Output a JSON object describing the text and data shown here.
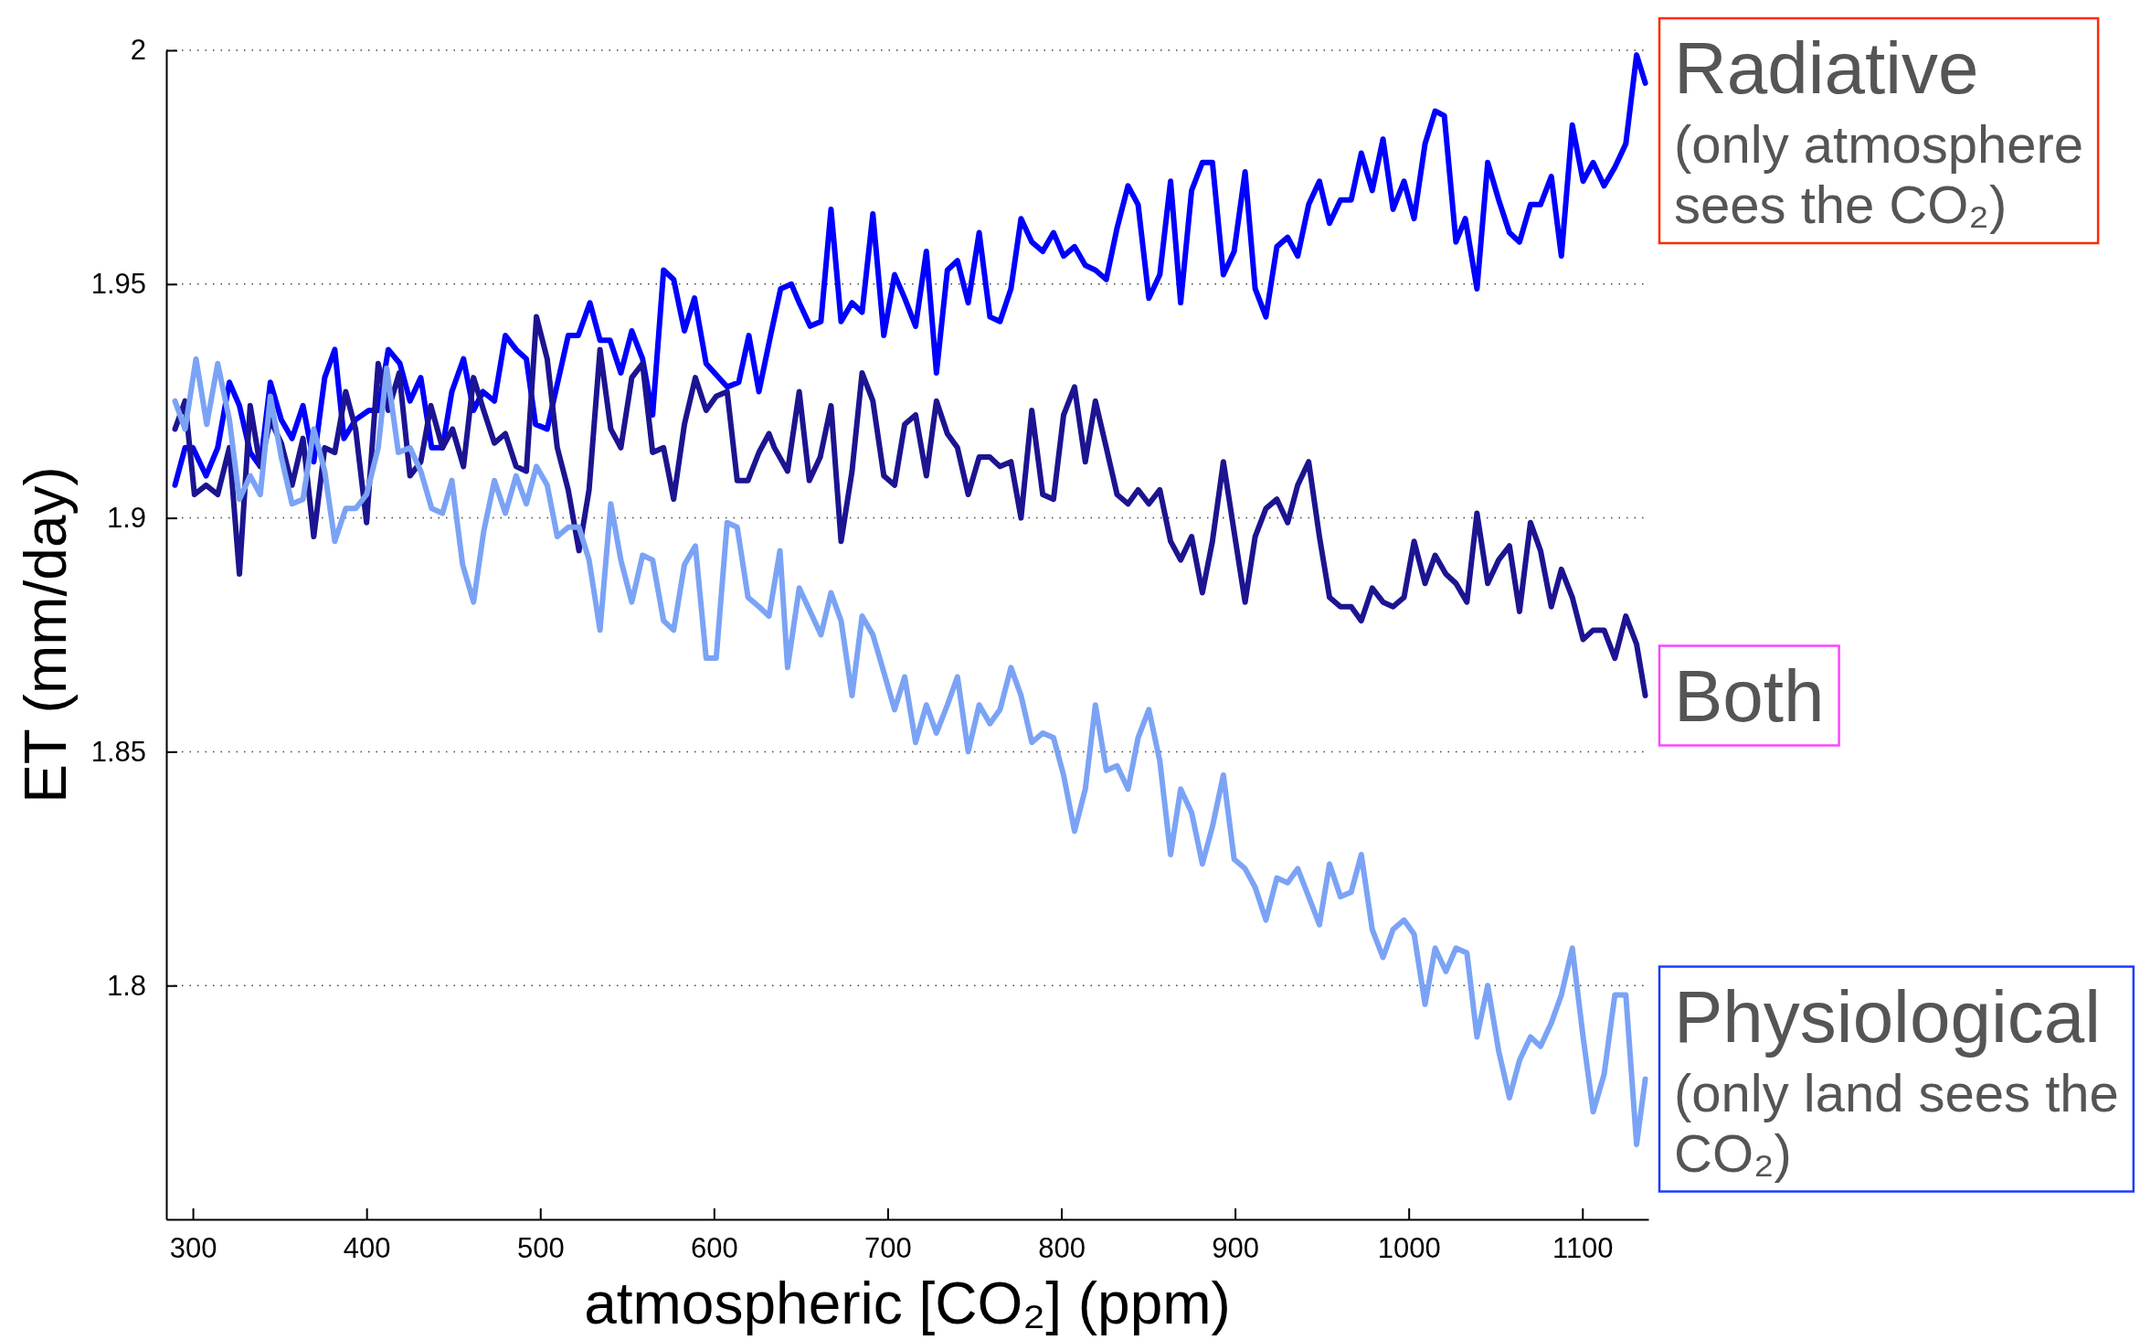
{
  "chart_data": {
    "type": "line",
    "xlabel": "atmospheric [CO₂] (ppm)",
    "ylabel": "ET (mm/day)",
    "xlim": [
      284.7,
      1138
    ],
    "xticks": [
      300,
      400,
      500,
      600,
      700,
      800,
      900,
      1000,
      1100
    ],
    "ylim": [
      1.75,
      2
    ],
    "yticks": [
      1.8,
      1.85,
      1.9,
      1.95,
      2
    ],
    "grid": "y",
    "series": [
      {
        "name": "Radiative (only atmosphere sees the CO₂)",
        "color": "#0000ff",
        "x": [
          289.7,
          295.5,
          300,
          307.6,
          314.3,
          321.0,
          326.8,
          333.0,
          338.8,
          344.6,
          350.9,
          357.1,
          363.4,
          369.6,
          375.9,
          381.7,
          387.0,
          393.7,
          401.3,
          406.7,
          412.5,
          419.2,
          425.0,
          431.2,
          437.5,
          443.7,
          449.1,
          455.8,
          461.6,
          467.0,
          473.6,
          479.9,
          486.1,
          492.0,
          497.3,
          504.0,
          516.1,
          521.9,
          528.6,
          534.4,
          540.2,
          546.4,
          552.7,
          558.9,
          564.7,
          571.0,
          576.8,
          583.0,
          588.8,
          595.5,
          607.6,
          614.3,
          620.1,
          625.9,
          632.6,
          638.4,
          644.6,
          649.1,
          655.4,
          661.6,
          667.4,
          673.2,
          679.5,
          685.3,
          691.5,
          697.8,
          704.0,
          709.8,
          716.1,
          722.3,
          728.1,
          734.4,
          740.2,
          746.4,
          752.7,
          758.9,
          764.7,
          771.0,
          776.8,
          783.0,
          789.3,
          795.5,
          801.3,
          807.6,
          813.8,
          819.6,
          825.9,
          832.1,
          838.4,
          844.2,
          850.4,
          856.7,
          862.9,
          868.7,
          875.0,
          881.2,
          887.0,
          893.3,
          899.5,
          905.8,
          911.6,
          917.8,
          924.1,
          930.3,
          936.1,
          942.4,
          948.6,
          954.4,
          960.7,
          966.9,
          972.7,
          979.0,
          985.2,
          991.0,
          997.3,
          1003.1,
          1009.4,
          1015.2,
          1020.5,
          1027.2,
          1032.6,
          1039.3,
          1045.5,
          1051.8,
          1058.0,
          1063.8,
          1070.1,
          1075.9,
          1082.1,
          1087.9,
          1094.2,
          1100.4,
          1106.2,
          1112.5,
          1118.7,
          1125.0,
          1131.2,
          1136.2
        ],
        "values": [
          1.907,
          1.915,
          1.915,
          1.909,
          1.915,
          1.929,
          1.924,
          1.914,
          1.911,
          1.929,
          1.921,
          1.917,
          1.924,
          1.912,
          1.93,
          1.936,
          1.917,
          1.921,
          1.923,
          1.923,
          1.936,
          1.933,
          1.925,
          1.93,
          1.915,
          1.915,
          1.927,
          1.934,
          1.923,
          1.927,
          1.925,
          1.939,
          1.936,
          1.934,
          1.92,
          1.919,
          1.939,
          1.939,
          1.946,
          1.938,
          1.938,
          1.931,
          1.94,
          1.934,
          1.922,
          1.953,
          1.951,
          1.94,
          1.947,
          1.933,
          1.928,
          1.929,
          1.939,
          1.927,
          1.939,
          1.949,
          1.95,
          1.946,
          1.941,
          1.942,
          1.966,
          1.942,
          1.946,
          1.944,
          1.965,
          1.939,
          1.952,
          1.947,
          1.941,
          1.957,
          1.931,
          1.953,
          1.955,
          1.946,
          1.961,
          1.943,
          1.942,
          1.949,
          1.964,
          1.959,
          1.957,
          1.961,
          1.956,
          1.958,
          1.954,
          1.953,
          1.951,
          1.962,
          1.971,
          1.967,
          1.947,
          1.952,
          1.972,
          1.946,
          1.97,
          1.976,
          1.976,
          1.952,
          1.957,
          1.974,
          1.949,
          1.943,
          1.958,
          1.96,
          1.956,
          1.967,
          1.972,
          1.963,
          1.968,
          1.968,
          1.978,
          1.97,
          1.981,
          1.966,
          1.972,
          1.964,
          1.98,
          1.987,
          1.986,
          1.959,
          1.964,
          1.949,
          1.976,
          1.968,
          1.961,
          1.959,
          1.967,
          1.967,
          1.973,
          1.956,
          1.984,
          1.972,
          1.976,
          1.971,
          1.975,
          1.98,
          1.999,
          1.993
        ]
      },
      {
        "name": "Both",
        "color": "#1c1490",
        "x": [
          289.7,
          295.5,
          300.9,
          307.6,
          314.3,
          321.0,
          326.8,
          333.0,
          338.8,
          344.6,
          350.9,
          357.1,
          363.4,
          369.6,
          375.9,
          381.7,
          388.0,
          393.7,
          400.0,
          406.7,
          412.5,
          418.8,
          425.0,
          431.2,
          437.0,
          443.7,
          449.5,
          455.8,
          461.6,
          467.4,
          473.6,
          479.9,
          486.1,
          492.0,
          497.8,
          504.0,
          509.8,
          516.1,
          522.3,
          528.1,
          534.4,
          540.6,
          546.4,
          552.7,
          558.9,
          564.7,
          571.0,
          576.8,
          583.0,
          589.3,
          595.5,
          601.3,
          607.6,
          613.4,
          619.6,
          625.9,
          631.7,
          634.8,
          642.4,
          649.1,
          654.9,
          661.2,
          667.4,
          673.2,
          679.5,
          685.3,
          691.5,
          697.8,
          704.0,
          709.8,
          716.1,
          722.3,
          728.1,
          734.4,
          740.2,
          746.4,
          752.7,
          758.9,
          764.7,
          771.0,
          776.8,
          783.0,
          789.3,
          795.5,
          801.3,
          807.6,
          813.8,
          819.6,
          825.9,
          832.1,
          838.4,
          844.2,
          850.4,
          856.7,
          862.9,
          868.7,
          875.0,
          881.2,
          887.0,
          893.3,
          899.5,
          905.8,
          911.6,
          917.8,
          924.1,
          930.3,
          936.1,
          942.4,
          948.6,
          954.4,
          960.7,
          966.9,
          972.7,
          979.0,
          985.2,
          991.0,
          997.3,
          1003.1,
          1009.4,
          1015.2,
          1021.4,
          1027.2,
          1033.5,
          1039.3,
          1045.5,
          1051.8,
          1058.0,
          1063.8,
          1070.1,
          1075.9,
          1082.1,
          1087.9,
          1094.2,
          1100.4,
          1106.2,
          1112.5,
          1118.7,
          1125.0,
          1131.2,
          1136.2
        ],
        "values": [
          1.919,
          1.925,
          1.905,
          1.907,
          1.905,
          1.915,
          1.888,
          1.924,
          1.911,
          1.921,
          1.916,
          1.907,
          1.917,
          1.896,
          1.915,
          1.914,
          1.927,
          1.919,
          1.899,
          1.933,
          1.923,
          1.931,
          1.909,
          1.912,
          1.924,
          1.915,
          1.919,
          1.911,
          1.93,
          1.923,
          1.916,
          1.918,
          1.911,
          1.91,
          1.943,
          1.934,
          1.915,
          1.906,
          1.893,
          1.906,
          1.936,
          1.919,
          1.915,
          1.93,
          1.933,
          1.914,
          1.915,
          1.904,
          1.92,
          1.93,
          1.923,
          1.926,
          1.927,
          1.908,
          1.908,
          1.914,
          1.918,
          1.915,
          1.91,
          1.927,
          1.908,
          1.913,
          1.924,
          1.895,
          1.91,
          1.931,
          1.925,
          1.909,
          1.907,
          1.92,
          1.922,
          1.909,
          1.925,
          1.918,
          1.915,
          1.905,
          1.913,
          1.913,
          1.911,
          1.912,
          1.9,
          1.923,
          1.905,
          1.904,
          1.922,
          1.928,
          1.912,
          1.925,
          1.915,
          1.905,
          1.903,
          1.906,
          1.903,
          1.906,
          1.895,
          1.891,
          1.896,
          1.884,
          1.895,
          1.912,
          1.897,
          1.882,
          1.896,
          1.902,
          1.904,
          1.899,
          1.907,
          1.912,
          1.896,
          1.883,
          1.881,
          1.881,
          1.878,
          1.885,
          1.882,
          1.881,
          1.883,
          1.895,
          1.886,
          1.892,
          1.888,
          1.886,
          1.882,
          1.901,
          1.886,
          1.891,
          1.894,
          1.88,
          1.899,
          1.893,
          1.881,
          1.889,
          1.883,
          1.874,
          1.876,
          1.876,
          1.87,
          1.879,
          1.873,
          1.862
        ]
      },
      {
        "name": "Physiological (only land sees the CO₂)",
        "color": "#7ba3f5",
        "x": [
          289.7,
          295.5,
          301.8,
          308.0,
          314.3,
          321.0,
          326.8,
          333.0,
          338.8,
          344.6,
          350.9,
          357.1,
          363.4,
          369.6,
          375.9,
          381.7,
          388.0,
          393.7,
          400.0,
          406.7,
          411.6,
          418.3,
          425.0,
          431.2,
          437.5,
          443.7,
          449.1,
          455.3,
          461.6,
          467.4,
          473.6,
          479.9,
          486.1,
          492.0,
          497.8,
          504.0,
          509.8,
          516.1,
          522.3,
          528.1,
          534.4,
          540.6,
          546.4,
          552.7,
          558.9,
          564.7,
          571.0,
          576.8,
          583.0,
          589.3,
          595.5,
          601.3,
          607.6,
          613.4,
          619.6,
          625.9,
          631.7,
          638.0,
          642.4,
          649.1,
          655.4,
          661.6,
          667.4,
          673.2,
          679.5,
          685.3,
          691.5,
          697.8,
          704.0,
          709.8,
          716.1,
          722.3,
          728.1,
          734.4,
          740.2,
          746.4,
          752.7,
          758.9,
          764.7,
          771.0,
          776.8,
          783.0,
          789.3,
          795.5,
          801.3,
          807.6,
          813.8,
          819.6,
          825.9,
          832.1,
          838.4,
          844.2,
          850.4,
          856.7,
          862.9,
          868.7,
          875.0,
          881.2,
          887.0,
          893.3,
          899.5,
          905.8,
          911.6,
          917.8,
          924.1,
          930.3,
          936.1,
          942.4,
          948.6,
          954.4,
          960.7,
          966.9,
          972.7,
          979.0,
          985.2,
          991.0,
          997.3,
          1003.1,
          1009.4,
          1015.2,
          1021.4,
          1027.2,
          1033.5,
          1039.3,
          1045.5,
          1051.8,
          1058.0,
          1063.8,
          1070.1,
          1075.9,
          1082.1,
          1087.9,
          1094.2,
          1100.4,
          1106.2,
          1112.5,
          1118.7,
          1125.0,
          1131.2,
          1136.2
        ],
        "values": [
          1.925,
          1.919,
          1.934,
          1.92,
          1.933,
          1.921,
          1.904,
          1.909,
          1.905,
          1.926,
          1.913,
          1.903,
          1.904,
          1.919,
          1.91,
          1.895,
          1.902,
          1.902,
          1.905,
          1.915,
          1.932,
          1.914,
          1.915,
          1.91,
          1.902,
          1.901,
          1.908,
          1.89,
          1.882,
          1.897,
          1.908,
          1.901,
          1.909,
          1.903,
          1.911,
          1.907,
          1.896,
          1.898,
          1.898,
          1.891,
          1.876,
          1.903,
          1.891,
          1.882,
          1.892,
          1.891,
          1.878,
          1.876,
          1.89,
          1.894,
          1.87,
          1.87,
          1.899,
          1.898,
          1.883,
          1.881,
          1.879,
          1.893,
          1.868,
          1.885,
          1.88,
          1.875,
          1.884,
          1.878,
          1.862,
          1.879,
          1.875,
          1.867,
          1.859,
          1.866,
          1.852,
          1.86,
          1.854,
          1.86,
          1.866,
          1.85,
          1.86,
          1.856,
          1.859,
          1.868,
          1.862,
          1.852,
          1.854,
          1.853,
          1.845,
          1.833,
          1.842,
          1.86,
          1.846,
          1.847,
          1.842,
          1.853,
          1.859,
          1.848,
          1.828,
          1.842,
          1.837,
          1.826,
          1.834,
          1.845,
          1.827,
          1.825,
          1.821,
          1.814,
          1.823,
          1.822,
          1.825,
          1.819,
          1.813,
          1.826,
          1.819,
          1.82,
          1.828,
          1.812,
          1.806,
          1.812,
          1.814,
          1.811,
          1.796,
          1.808,
          1.803,
          1.808,
          1.807,
          1.789,
          1.8,
          1.786,
          1.776,
          1.784,
          1.789,
          1.787,
          1.792,
          1.798,
          1.808,
          1.789,
          1.773,
          1.781,
          1.798,
          1.798,
          1.766,
          1.78
        ]
      }
    ]
  }
}
